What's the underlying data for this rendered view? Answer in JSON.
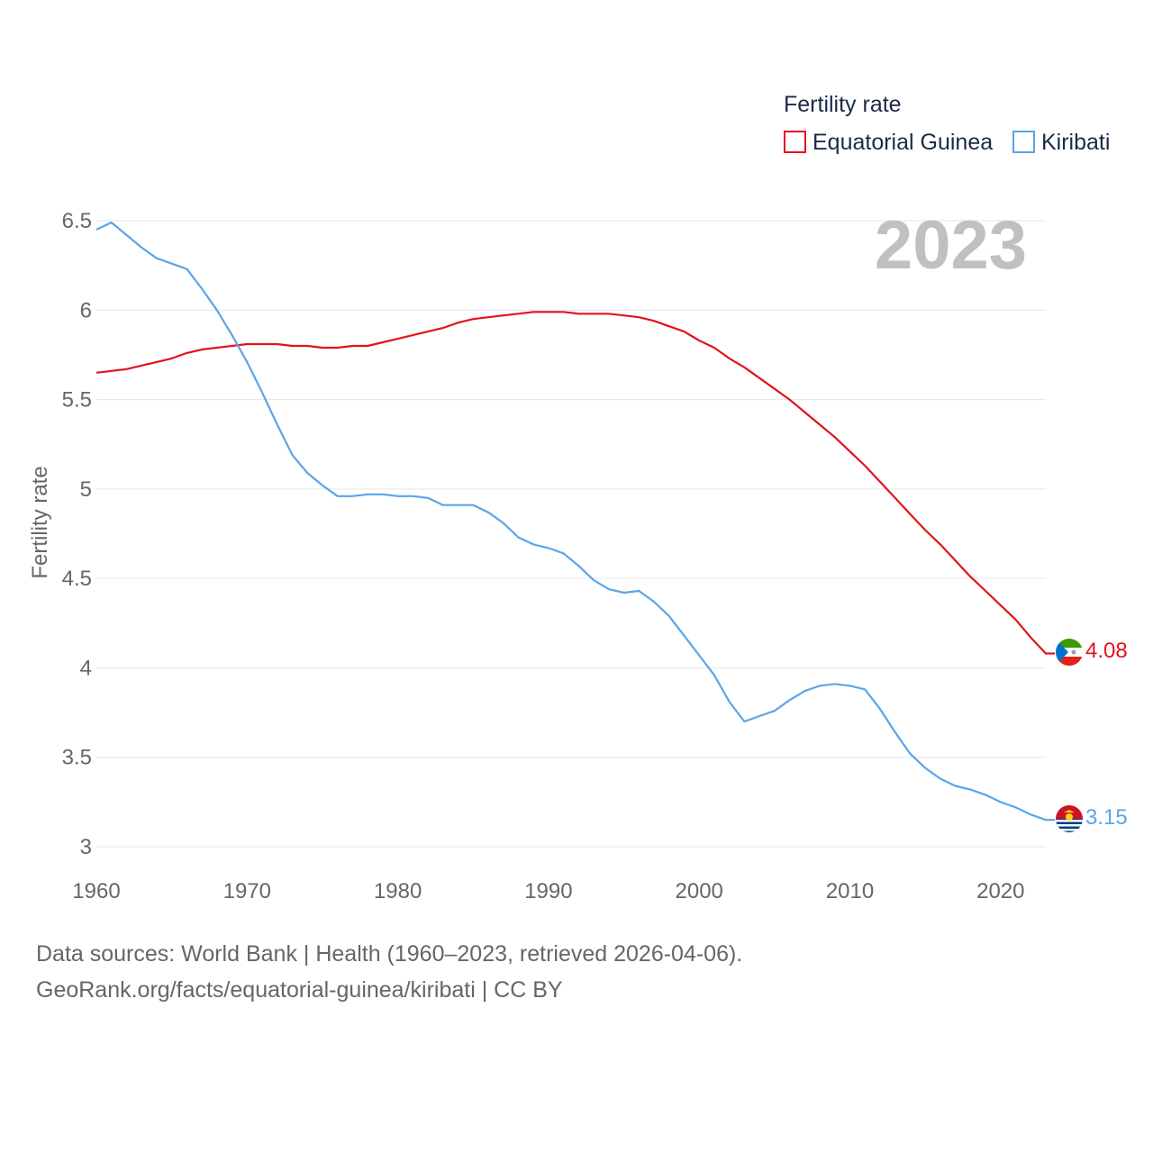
{
  "chart_data": {
    "type": "line",
    "legend_title": "Fertility rate",
    "ylabel": "Fertility rate",
    "year_label": "2023",
    "ylim": [
      3,
      6.5
    ],
    "xlim": [
      1960,
      2023
    ],
    "x_ticks": [
      1960,
      1970,
      1980,
      1990,
      2000,
      2010,
      2020
    ],
    "y_ticks": [
      3,
      3.5,
      4,
      4.5,
      5,
      5.5,
      6,
      6.5
    ],
    "y_tick_labels": [
      "3",
      "3.5",
      "4",
      "4.5",
      "5",
      "5.5",
      "6",
      "6.5"
    ],
    "x": [
      1960,
      1961,
      1962,
      1963,
      1964,
      1965,
      1966,
      1967,
      1968,
      1969,
      1970,
      1971,
      1972,
      1973,
      1974,
      1975,
      1976,
      1977,
      1978,
      1979,
      1980,
      1981,
      1982,
      1983,
      1984,
      1985,
      1986,
      1987,
      1988,
      1989,
      1990,
      1991,
      1992,
      1993,
      1994,
      1995,
      1996,
      1997,
      1998,
      1999,
      2000,
      2001,
      2002,
      2003,
      2004,
      2005,
      2006,
      2007,
      2008,
      2009,
      2010,
      2011,
      2012,
      2013,
      2014,
      2015,
      2016,
      2017,
      2018,
      2019,
      2020,
      2021,
      2022,
      2023
    ],
    "series": [
      {
        "name": "Equatorial Guinea",
        "color": "#e3121e",
        "end_label": "4.08",
        "values": [
          5.65,
          5.66,
          5.67,
          5.69,
          5.71,
          5.73,
          5.76,
          5.78,
          5.79,
          5.8,
          5.81,
          5.81,
          5.81,
          5.8,
          5.8,
          5.79,
          5.79,
          5.8,
          5.8,
          5.82,
          5.84,
          5.86,
          5.88,
          5.9,
          5.93,
          5.95,
          5.96,
          5.97,
          5.98,
          5.99,
          5.99,
          5.99,
          5.98,
          5.98,
          5.98,
          5.97,
          5.96,
          5.94,
          5.91,
          5.88,
          5.83,
          5.79,
          5.73,
          5.68,
          5.62,
          5.56,
          5.5,
          5.43,
          5.36,
          5.29,
          5.21,
          5.13,
          5.04,
          4.95,
          4.86,
          4.77,
          4.69,
          4.6,
          4.51,
          4.43,
          4.35,
          4.27,
          4.17,
          4.08
        ]
      },
      {
        "name": "Kiribati",
        "color": "#5aa5e8",
        "end_label": "3.15",
        "values": [
          6.45,
          6.49,
          6.42,
          6.35,
          6.29,
          6.26,
          6.23,
          6.12,
          6.0,
          5.86,
          5.71,
          5.54,
          5.36,
          5.19,
          5.09,
          5.02,
          4.96,
          4.96,
          4.97,
          4.97,
          4.96,
          4.96,
          4.95,
          4.91,
          4.91,
          4.91,
          4.87,
          4.81,
          4.73,
          4.69,
          4.67,
          4.64,
          4.57,
          4.49,
          4.44,
          4.42,
          4.43,
          4.37,
          4.29,
          4.18,
          4.07,
          3.96,
          3.81,
          3.7,
          3.73,
          3.76,
          3.82,
          3.87,
          3.9,
          3.91,
          3.9,
          3.88,
          3.77,
          3.64,
          3.52,
          3.44,
          3.38,
          3.34,
          3.32,
          3.29,
          3.25,
          3.22,
          3.18,
          3.15
        ]
      }
    ]
  },
  "footer": {
    "line1": "Data sources: World Bank | Health (1960–2023, retrieved 2026-04-06).",
    "line2": "GeoRank.org/facts/equatorial-guinea/kiribati | CC BY"
  }
}
